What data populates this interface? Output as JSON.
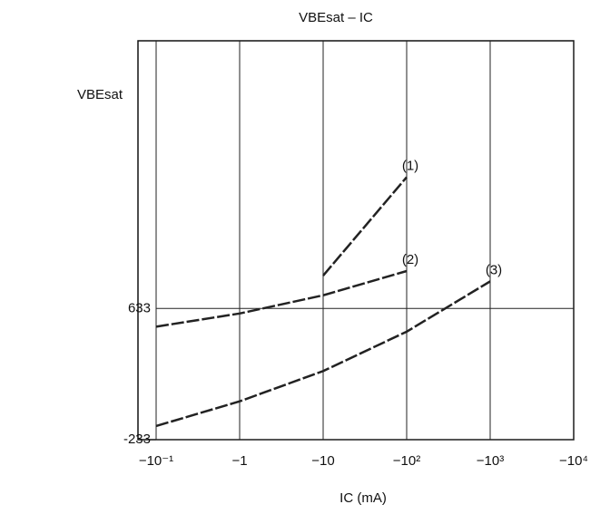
{
  "chart_data": {
    "type": "line",
    "title": "VBEsat – IC",
    "y_label": "VBEsat",
    "x_label": "IC (mA)",
    "log_x": true,
    "grid": true,
    "x": [
      0.1,
      1,
      10,
      100,
      1000
    ],
    "xlim": [
      0.1,
      10000
    ],
    "xticks": [
      {
        "value": 0.1,
        "label": "−10⁻¹"
      },
      {
        "value": 1,
        "label": "−1"
      },
      {
        "value": 10,
        "label": "−10"
      },
      {
        "value": 100,
        "label": "−10²"
      },
      {
        "value": 1000,
        "label": "−10³"
      },
      {
        "value": 10000,
        "label": "−10⁴"
      }
    ],
    "ylim": [
      -233,
      2400
    ],
    "yticks": [
      -233,
      633
    ],
    "series": [
      {
        "name": "(1)",
        "color": "#222222",
        "values": [
          null,
          null,
          850,
          1500,
          null
        ]
      },
      {
        "name": "(2)",
        "color": "#222222",
        "values": [
          513,
          600,
          720,
          880,
          null
        ]
      },
      {
        "name": "(3)",
        "color": "#222222",
        "values": [
          -143,
          20,
          220,
          480,
          812
        ]
      }
    ]
  }
}
